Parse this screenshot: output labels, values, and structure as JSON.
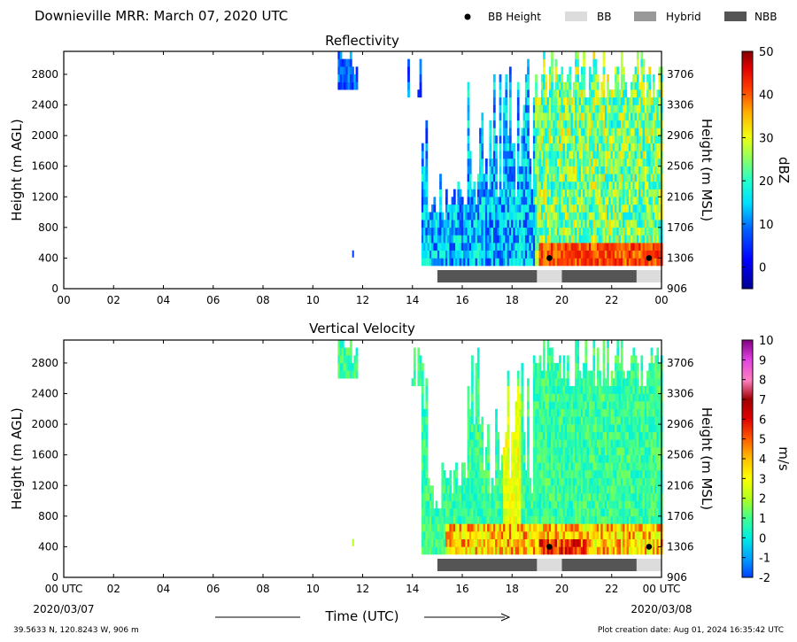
{
  "title": "Downieville MRR:  March 07, 2020 UTC",
  "legend": [
    {
      "label": "BB Height",
      "kind": "dot",
      "color": "#000000"
    },
    {
      "label": "BB",
      "kind": "box",
      "color": "#dcdcdc"
    },
    {
      "label": "Hybrid",
      "kind": "box",
      "color": "#999999"
    },
    {
      "label": "NBB",
      "kind": "box",
      "color": "#555555"
    }
  ],
  "footer": {
    "location": "39.5633 N, 120.8243 W, 906 m",
    "creation": "Plot creation date: Aug 01, 2024 16:35:42 UTC",
    "xlabel": "Time (UTC)",
    "start_date": "2020/03/07",
    "end_date": "2020/03/08"
  },
  "chart_data": [
    {
      "type": "heatmap",
      "title": "Reflectivity",
      "ylabel": "Height (m AGL)",
      "y2label": "Height (m MSL)",
      "xlim": [
        0,
        24
      ],
      "ylim": [
        0,
        3100
      ],
      "xticks": [
        "00",
        "02",
        "04",
        "06",
        "08",
        "10",
        "12",
        "14",
        "16",
        "18",
        "20",
        "22",
        "00"
      ],
      "yticks": [
        0,
        400,
        800,
        1200,
        1600,
        2000,
        2400,
        2800
      ],
      "y2ticks": [
        906,
        1306,
        1706,
        2106,
        2506,
        2906,
        3306,
        3706
      ],
      "colorbar": {
        "label": "dBZ",
        "min": -5,
        "max": 50,
        "ticks": [
          0,
          10,
          20,
          30,
          40,
          50
        ]
      },
      "bb_height_points": [
        {
          "x": 19.5,
          "y": 400
        },
        {
          "x": 23.5,
          "y": 400
        }
      ],
      "bb_type_segments": [
        {
          "start": 15.0,
          "end": 19.0,
          "type": "NBB"
        },
        {
          "start": 19.0,
          "end": 20.0,
          "type": "BB"
        },
        {
          "start": 20.0,
          "end": 23.0,
          "type": "NBB"
        },
        {
          "start": 23.0,
          "end": 24.0,
          "type": "BB"
        }
      ]
    },
    {
      "type": "heatmap",
      "title": "Vertical Velocity",
      "ylabel": "Height (m AGL)",
      "y2label": "Height (m MSL)",
      "xlim": [
        0,
        24
      ],
      "ylim": [
        0,
        3100
      ],
      "xticks": [
        "00 UTC",
        "02",
        "04",
        "06",
        "08",
        "10",
        "12",
        "14",
        "16",
        "18",
        "20",
        "22",
        "00 UTC"
      ],
      "yticks": [
        0,
        400,
        800,
        1200,
        1600,
        2000,
        2400,
        2800
      ],
      "y2ticks": [
        906,
        1306,
        1706,
        2106,
        2506,
        2906,
        3306,
        3706
      ],
      "colorbar": {
        "label": "m/s",
        "min": -2,
        "max": 10,
        "ticks": [
          -2,
          -1,
          0,
          1,
          2,
          3,
          4,
          5,
          6,
          7,
          8,
          9,
          10
        ]
      },
      "bb_height_points": [
        {
          "x": 19.5,
          "y": 400
        },
        {
          "x": 23.5,
          "y": 400
        }
      ],
      "bb_type_segments": [
        {
          "start": 15.0,
          "end": 19.0,
          "type": "NBB"
        },
        {
          "start": 19.0,
          "end": 20.0,
          "type": "BB"
        },
        {
          "start": 20.0,
          "end": 23.0,
          "type": "NBB"
        },
        {
          "start": 23.0,
          "end": 24.0,
          "type": "BB"
        }
      ]
    }
  ]
}
